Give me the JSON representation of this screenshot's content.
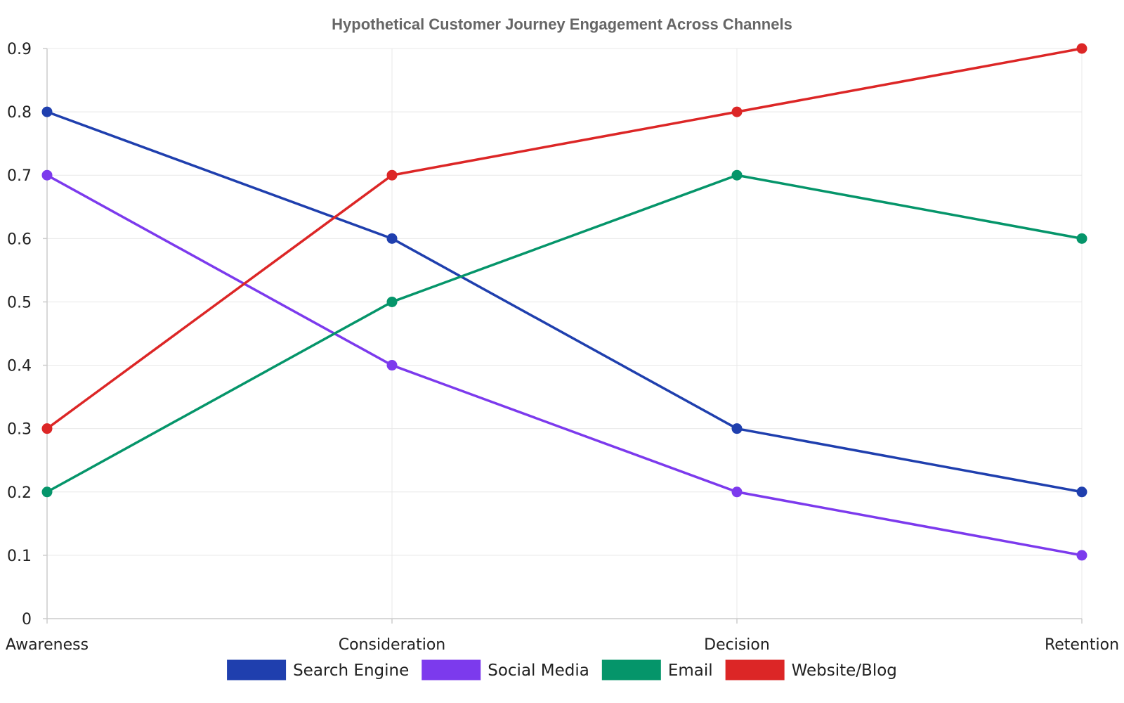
{
  "chart_data": {
    "type": "line",
    "title": "Hypothetical Customer Journey Engagement Across Channels",
    "xlabel": "",
    "ylabel": "",
    "categories": [
      "Awareness",
      "Consideration",
      "Decision",
      "Retention"
    ],
    "ylim": [
      0,
      0.9
    ],
    "yticks": [
      "0",
      "0.1",
      "0.2",
      "0.3",
      "0.4",
      "0.5",
      "0.6",
      "0.7",
      "0.8",
      "0.9"
    ],
    "grid": true,
    "legend_position": "bottom",
    "series": [
      {
        "name": "Search Engine",
        "color": "#1f3fae",
        "values": [
          0.8,
          0.6,
          0.3,
          0.2
        ]
      },
      {
        "name": "Social Media",
        "color": "#7c3aed",
        "values": [
          0.7,
          0.4,
          0.2,
          0.1
        ]
      },
      {
        "name": "Email",
        "color": "#05956a",
        "values": [
          0.2,
          0.5,
          0.7,
          0.6
        ]
      },
      {
        "name": "Website/Blog",
        "color": "#dc2626",
        "values": [
          0.3,
          0.7,
          0.8,
          0.9
        ]
      }
    ]
  }
}
